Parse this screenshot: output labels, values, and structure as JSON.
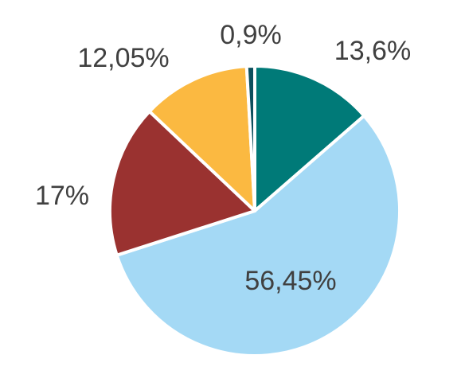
{
  "chart_data": {
    "type": "pie",
    "values": [
      13.6,
      56.45,
      17,
      12.05,
      0.9
    ],
    "value_labels": [
      "13,6%",
      "56,45%",
      "17%",
      "12,05%",
      "0,9%"
    ],
    "colors": [
      "#007a78",
      "#a4d9f5",
      "#9a3230",
      "#fbb941",
      "#0d4f5c"
    ]
  }
}
